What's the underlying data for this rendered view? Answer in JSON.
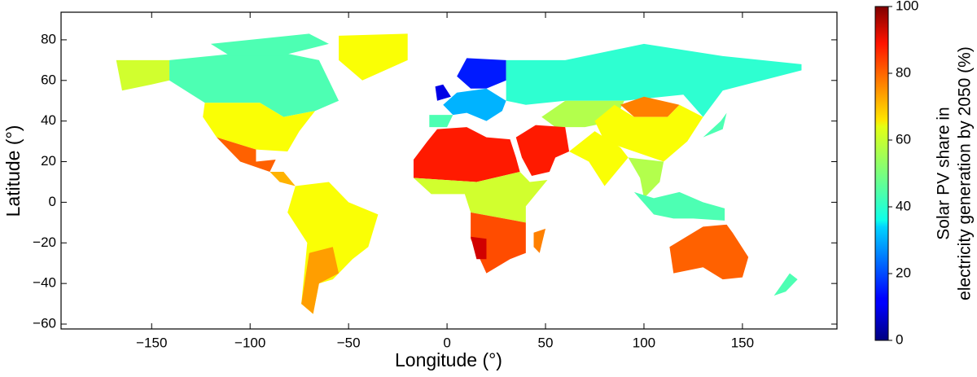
{
  "chart_data": {
    "type": "map",
    "xlabel": "Longitude (°)",
    "ylabel": "Latitude (°)",
    "xlim": [
      -196,
      198
    ],
    "ylim": [
      -62.4,
      93.6
    ],
    "xticks": [
      {
        "value": -150,
        "label": "−150"
      },
      {
        "value": -100,
        "label": "−100"
      },
      {
        "value": -50,
        "label": "−50"
      },
      0,
      50,
      100,
      150
    ],
    "yticks": [
      {
        "value": -60,
        "label": "−60"
      },
      {
        "value": -40,
        "label": "−40"
      },
      {
        "value": -20,
        "label": "−20"
      },
      0,
      20,
      40,
      60,
      80
    ],
    "colormap": "jet",
    "colorbar_label": [
      "Solar PV share in",
      "electricity generation by 2050 (%)"
    ],
    "colorbar_lim": [
      0,
      100
    ],
    "colorbar_ticks": [
      0,
      20,
      40,
      60,
      80,
      100
    ],
    "region_values": [
      58,
      45,
      45,
      62,
      62,
      78,
      70,
      62,
      72,
      15,
      30,
      45,
      10,
      42,
      55,
      75,
      62,
      85,
      85,
      62,
      55,
      58,
      80,
      92,
      75,
      45,
      78,
      45,
      45
    ]
  }
}
